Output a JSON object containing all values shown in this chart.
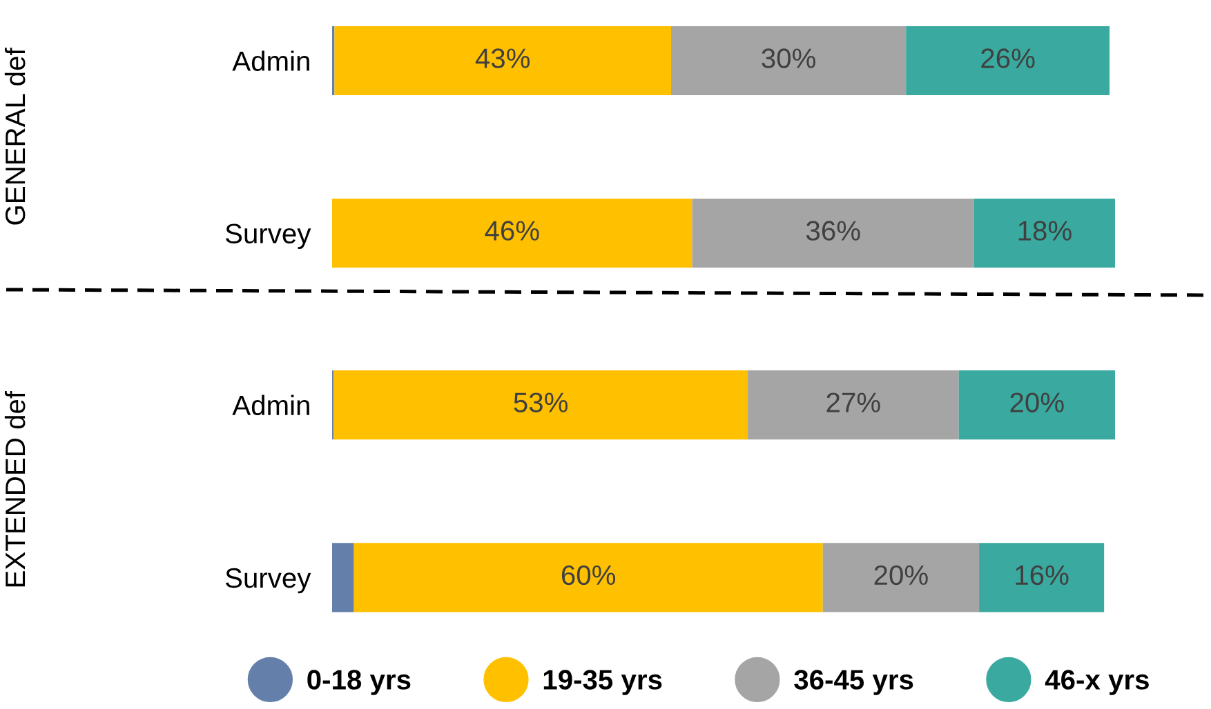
{
  "chart_data": [
    {
      "type": "bar",
      "orientation": "horizontal",
      "stacked": true,
      "ylabel": "GENERAL def",
      "categories": [
        "Admin",
        "Survey"
      ],
      "tick_labels": "y",
      "legend": false,
      "series": [
        {
          "color": "#6480aa",
          "values": [
            0.3,
            0
          ],
          "value_labels": [
            null,
            null
          ]
        },
        {
          "color": "#ffc000",
          "values": [
            43,
            46
          ],
          "value_labels": [
            "43%",
            "46%"
          ]
        },
        {
          "color": "#a5a5a5",
          "values": [
            30,
            36
          ],
          "value_labels": [
            "30%",
            "36%"
          ]
        },
        {
          "color": "#3aa99f",
          "values": [
            26,
            18
          ],
          "value_labels": [
            "26%",
            "18%"
          ]
        }
      ]
    },
    {
      "type": "bar",
      "orientation": "horizontal",
      "stacked": true,
      "ylabel": "EXTENDED def",
      "categories": [
        "Admin",
        "Survey"
      ],
      "tick_labels": "y",
      "legend": "bottom",
      "series": [
        {
          "name": "0-18 yrs",
          "color": "#6480aa",
          "values": [
            0.2,
            2.8
          ],
          "value_labels": [
            null,
            null
          ]
        },
        {
          "name": "19-35 yrs",
          "color": "#ffc000",
          "values": [
            53,
            60
          ],
          "value_labels": [
            "53%",
            "60%"
          ]
        },
        {
          "name": "36-45 yrs",
          "color": "#a5a5a5",
          "values": [
            27,
            20
          ],
          "value_labels": [
            "27%",
            "20%"
          ]
        },
        {
          "name": "46-x yrs",
          "color": "#3aa99f",
          "values": [
            20,
            16
          ],
          "value_labels": [
            "20%",
            "16%"
          ]
        }
      ]
    }
  ]
}
